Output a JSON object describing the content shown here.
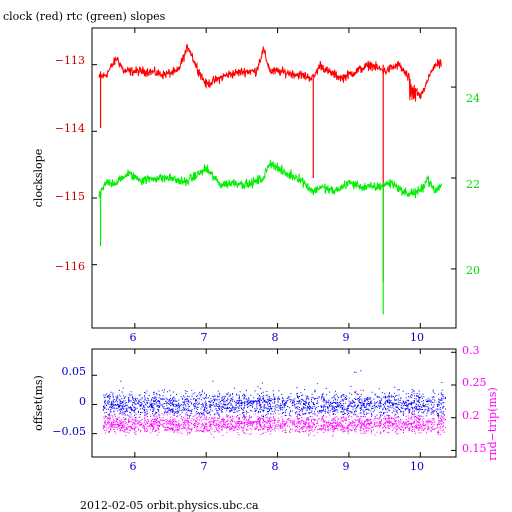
{
  "chart_data": [
    {
      "type": "line",
      "title": "clock (red) rtc (green) slopes",
      "xlabel": "",
      "ylabel": "clockslope",
      "xlim": [
        5.4,
        10.5
      ],
      "ylim": [
        -116.95,
        -112.45
      ],
      "y2lim": [
        18.7,
        25.3
      ],
      "x_ticks": [
        6,
        7,
        8,
        9,
        10
      ],
      "y_ticks": [
        -113,
        -114,
        -115,
        -116
      ],
      "y2_ticks": [
        24,
        22,
        20
      ],
      "series": [
        {
          "color": "#ff0000",
          "axis": "left",
          "x": [
            5.5,
            5.6,
            5.75,
            5.85,
            6.0,
            6.2,
            6.4,
            6.6,
            6.75,
            6.85,
            7.0,
            7.3,
            7.55,
            7.7,
            7.8,
            7.9,
            8.0,
            8.3,
            8.5,
            8.6,
            8.7,
            8.9,
            9.1,
            9.3,
            9.5,
            9.7,
            9.9,
            10.0,
            10.2,
            10.3
          ],
          "y": [
            -113.2,
            -113.15,
            -112.9,
            -113.1,
            -113.1,
            -113.1,
            -113.15,
            -113.1,
            -112.72,
            -113.0,
            -113.3,
            -113.15,
            -113.1,
            -113.1,
            -112.78,
            -113.1,
            -113.1,
            -113.15,
            -113.2,
            -113.0,
            -113.1,
            -113.2,
            -113.1,
            -113.0,
            -113.1,
            -113.0,
            -113.3,
            -113.5,
            -113.0,
            -113.0
          ]
        },
        {
          "color": "#00ee00",
          "axis": "right",
          "x": [
            5.5,
            5.6,
            5.75,
            5.9,
            6.1,
            6.3,
            6.5,
            6.7,
            6.9,
            7.0,
            7.2,
            7.4,
            7.6,
            7.8,
            7.9,
            8.1,
            8.3,
            8.5,
            8.6,
            8.8,
            9.0,
            9.2,
            9.4,
            9.6,
            9.8,
            10.0,
            10.1,
            10.2,
            10.3
          ],
          "y": [
            21.6,
            21.9,
            21.9,
            22.1,
            21.95,
            22.0,
            22.0,
            21.9,
            22.1,
            22.2,
            21.85,
            21.9,
            21.85,
            22.0,
            22.35,
            22.1,
            22.0,
            21.7,
            21.8,
            21.7,
            21.9,
            21.8,
            21.8,
            21.9,
            21.65,
            21.7,
            22.0,
            21.7,
            21.85
          ]
        }
      ]
    },
    {
      "type": "scatter",
      "title": "",
      "xlabel": "",
      "ylabel": "offset(ms)",
      "y2label": "rnd−trip(ms)",
      "xlim": [
        5.4,
        10.5
      ],
      "ylim": [
        -0.09,
        0.095
      ],
      "y2lim": [
        0.14,
        0.305
      ],
      "x_ticks": [
        6,
        7,
        8,
        9,
        10
      ],
      "y_ticks": [
        0.05,
        0,
        -0.05
      ],
      "y2_ticks": [
        0.3,
        0.25,
        0.2,
        0.15
      ],
      "series": [
        {
          "color": "#0000ff",
          "axis": "left",
          "center": 0.0,
          "spread": 0.018,
          "x_range": [
            5.55,
            10.35
          ]
        },
        {
          "color": "#ff00ff",
          "axis": "right",
          "center": 0.19,
          "spread": 0.012,
          "x_range": [
            5.55,
            10.35
          ]
        }
      ]
    }
  ],
  "labels": {
    "title": "clock (red) rtc (green) slopes",
    "top_ylabel": "clockslope",
    "bottom_ylabel": "offset(ms)",
    "bottom_y2label": "rnd−trip(ms)",
    "footer": "2012-02-05  orbit.physics.ubc.ca"
  },
  "tick_labels": {
    "top_left": [
      "−113",
      "−114",
      "−115",
      "−116"
    ],
    "top_right": [
      "24",
      "22",
      "20"
    ],
    "top_x": [
      "6",
      "7",
      "8",
      "9",
      "10"
    ],
    "bottom_left": [
      "0.05",
      "0",
      "−0.05"
    ],
    "bottom_right": [
      "0.3",
      "0.25",
      "0.2",
      "0.15"
    ],
    "bottom_x": [
      "6",
      "7",
      "8",
      "9",
      "10"
    ]
  },
  "colors": {
    "red": "#ff0000",
    "green": "#00ee00",
    "blue": "#0000ff",
    "magenta": "#ff00ff",
    "left_axis_red": "#cc0000",
    "right_axis_green": "#00dd00",
    "xaxis_blue": "#0000cc"
  }
}
